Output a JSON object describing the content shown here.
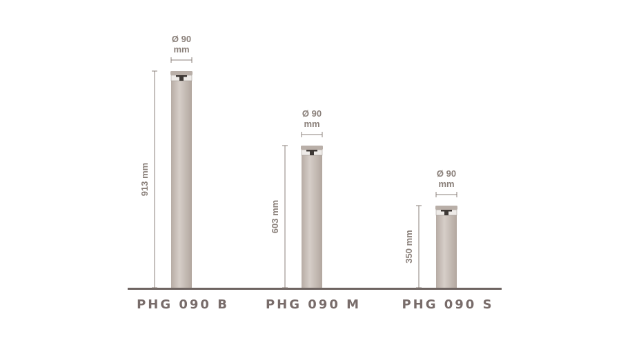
{
  "products": [
    {
      "name": "PHG 090 B",
      "height_label": "913 mm",
      "diameter_label": "Ø 90",
      "diameter_unit": "mm"
    },
    {
      "name": "PHG 090 M",
      "height_label": "603 mm",
      "diameter_label": "Ø 90",
      "diameter_unit": "mm"
    },
    {
      "name": "PHG 090 S",
      "height_label": "350 mm",
      "diameter_label": "Ø 90",
      "diameter_unit": "mm"
    }
  ]
}
